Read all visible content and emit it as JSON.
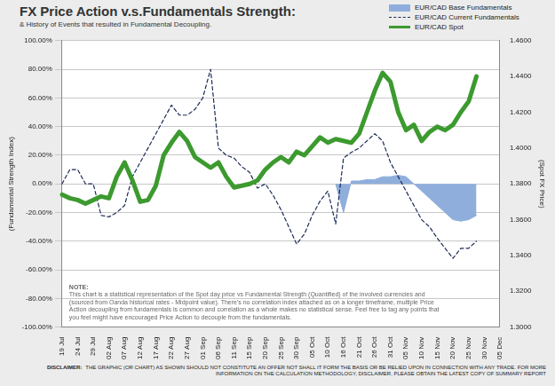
{
  "chart_data": {
    "type": "line",
    "title": "FX Price Action v.s.Fundamentals Strength:",
    "subtitle": "& History of Events that resulted in Fundamental Decoupling.",
    "y_label": "(Fundamental Strength Index)",
    "y2_label": "(Spot FX Price)",
    "note_title": "NOTE:",
    "note": "This chart is a statistical representation of the Spot day price vs Fundamental Strength (Quantified) of the involved currencies and (sourced from Oanda historical rates - Midpoint value). There's no correlation index attached as on a longer timeframe, multiple Price Action decoupling from fundamentals is common and correlation as a whole makes no statistical sense. Feel free to tag any points that you feel might have encouraged Price Action to decouple from the fundamentals.",
    "disclaimer_title": "DISCLAIMER:",
    "disclaimer": "THE GRAPHIC (OR CHART) AS SHOWN SHOULD NOT CONSTITUTE AN OFFER NOT SHALL IT FORM THE BASIS OR BE RELIED UPON IN CONNECTION WITH ANY TRADE. FOR MORE INFORMATION ON THE CALCULATION METHODOLOGY, DISCLAIMER, PLEASE OBTAIN THE LATEST COPY OF SUMMARY REPORT",
    "categories": [
      "19 Jul",
      null,
      "24 Jul",
      null,
      "29 Jul",
      null,
      "02 Aug",
      null,
      "07 Aug",
      null,
      "12 Aug",
      null,
      "17 Aug",
      null,
      "22 Aug",
      null,
      "27 Aug",
      null,
      "01 Sep",
      null,
      "06 Sep",
      null,
      "11 Sep",
      null,
      "15 Sep",
      null,
      "20 Sep",
      null,
      "25 Sep",
      null,
      "30 Sep",
      null,
      "05 Oct",
      null,
      "10 Oct",
      null,
      "16 Oct",
      null,
      "21 Oct",
      null,
      "26 Oct",
      null,
      "31 Oct",
      null,
      "05 Nov",
      null,
      "10 Nov",
      null,
      "15 Nov",
      null,
      "20 Nov",
      null,
      "25 Nov",
      null,
      "30 Nov",
      null,
      "05 Dec"
    ],
    "series": [
      {
        "name": "EUR/CAD Base Fundamentals",
        "type": "area",
        "color": "#8faedc",
        "axis": "y",
        "values": [
          null,
          null,
          null,
          null,
          null,
          null,
          null,
          null,
          null,
          null,
          null,
          null,
          null,
          null,
          null,
          null,
          null,
          null,
          null,
          null,
          null,
          null,
          null,
          null,
          null,
          null,
          null,
          null,
          null,
          null,
          null,
          null,
          null,
          null,
          null,
          0,
          -20,
          2,
          2,
          3,
          3,
          5,
          5,
          6,
          5,
          0,
          -5,
          -10,
          -15,
          -20,
          -25,
          -26,
          -25,
          -22,
          null,
          null,
          null
        ]
      },
      {
        "name": "EUR/CAD Current Fundamentals",
        "type": "line",
        "line_style": "dashed",
        "color": "#1c2a56",
        "axis": "y",
        "values": [
          0,
          10,
          10,
          0,
          0,
          -22,
          -23,
          -20,
          -15,
          5,
          15,
          25,
          35,
          45,
          55,
          48,
          48,
          52,
          60,
          80,
          25,
          20,
          18,
          12,
          8,
          -3,
          0,
          -8,
          -18,
          -30,
          -42,
          -35,
          -22,
          -12,
          -5,
          -28,
          18,
          22,
          25,
          30,
          35,
          30,
          15,
          5,
          -5,
          -15,
          -25,
          -30,
          -38,
          -45,
          -52,
          -45,
          -45,
          -40,
          null,
          null,
          null
        ]
      },
      {
        "name": "EUR/CAD Spot",
        "type": "line",
        "line_style": "solid",
        "color": "#3c9a2f",
        "axis": "y2",
        "values": [
          1.374,
          1.372,
          1.371,
          1.369,
          1.371,
          1.373,
          1.372,
          1.384,
          1.392,
          1.382,
          1.37,
          1.371,
          1.379,
          1.396,
          1.403,
          1.409,
          1.404,
          1.395,
          1.392,
          1.389,
          1.392,
          1.384,
          1.378,
          1.379,
          1.38,
          1.382,
          1.388,
          1.392,
          1.395,
          1.392,
          1.398,
          1.396,
          1.401,
          1.406,
          1.403,
          1.405,
          1.404,
          1.403,
          1.408,
          1.42,
          1.432,
          1.442,
          1.437,
          1.42,
          1.41,
          1.413,
          1.404,
          1.409,
          1.412,
          1.41,
          1.413,
          1.42,
          1.426,
          1.44,
          null,
          null,
          null
        ]
      }
    ],
    "ylim": [
      -100,
      100
    ],
    "yticks": [
      {
        "value": -100,
        "label": "-100.00%"
      },
      {
        "value": -80,
        "label": "-80.00%"
      },
      {
        "value": -60,
        "label": "-60.00%"
      },
      {
        "value": -40,
        "label": "-40.00%"
      },
      {
        "value": -20,
        "label": "-20.00%"
      },
      {
        "value": 0,
        "label": "0.00%"
      },
      {
        "value": 20,
        "label": "20.00%"
      },
      {
        "value": 40,
        "label": "40.00%"
      },
      {
        "value": 60,
        "label": "60.00%"
      },
      {
        "value": 80,
        "label": "80.00%"
      },
      {
        "value": 100,
        "label": "100.00%"
      }
    ],
    "y2lim": [
      1.3,
      1.46
    ],
    "y2ticks": [
      {
        "value": 1.3,
        "label": "1.3000"
      },
      {
        "value": 1.32,
        "label": "1.3200"
      },
      {
        "value": 1.34,
        "label": "1.3400"
      },
      {
        "value": 1.36,
        "label": "1.3600"
      },
      {
        "value": 1.38,
        "label": "1.3800"
      },
      {
        "value": 1.4,
        "label": "1.4000"
      },
      {
        "value": 1.42,
        "label": "1.4200"
      },
      {
        "value": 1.44,
        "label": "1.4400"
      },
      {
        "value": 1.46,
        "label": "1.4600"
      }
    ],
    "grid": true,
    "legend": "top-right"
  }
}
